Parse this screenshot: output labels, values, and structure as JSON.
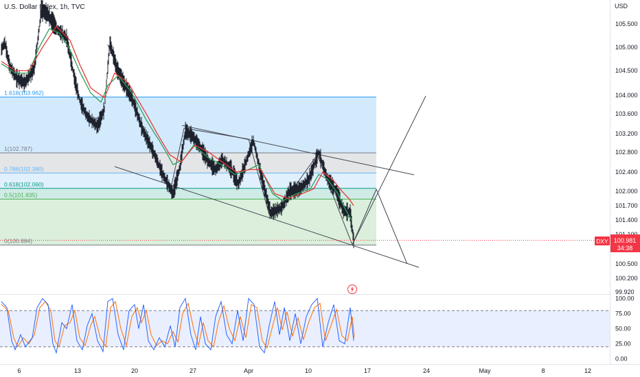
{
  "chart_data": {
    "type": "line",
    "title": "U.S. Dollar Index, 1h, TVC",
    "currency_label": "USD",
    "price_axis": {
      "ticks": [
        "105.500",
        "105.000",
        "104.500",
        "104.000",
        "103.600",
        "103.200",
        "102.800",
        "102.400",
        "102.000",
        "101.700",
        "101.400",
        "101.100",
        "100.500",
        "100.200",
        "99.920"
      ],
      "tick_values": [
        105.5,
        105.0,
        104.5,
        104.0,
        103.6,
        103.2,
        102.8,
        102.4,
        102.0,
        101.7,
        101.4,
        101.1,
        100.5,
        100.2,
        99.92
      ],
      "range": [
        99.9,
        105.9
      ],
      "scale": "nonlinear"
    },
    "oscillator_axis": {
      "ticks": [
        "100.00",
        "75.00",
        "50.00",
        "25.00",
        "0.00"
      ],
      "tick_values": [
        100,
        75,
        50,
        25,
        0
      ],
      "band_upper": 80,
      "band_lower": 20
    },
    "time_axis": {
      "labels": [
        "6",
        "13",
        "20",
        "27",
        "Apr",
        "10",
        "17",
        "24",
        "May",
        "8",
        "12"
      ]
    },
    "last_price": {
      "symbol": "DXY",
      "price": "100.981",
      "countdown": "34:38",
      "value": 100.981,
      "color": "#f23645"
    },
    "fibonacci": [
      {
        "label": "1.618(103.962)",
        "level": 1.618,
        "price": 103.962,
        "color": "#2196f3"
      },
      {
        "label": "1(102.787)",
        "level": 1,
        "price": 102.787,
        "color": "#787b86"
      },
      {
        "label": "0.786(102.380)",
        "level": 0.786,
        "price": 102.38,
        "color": "#64b5f6"
      },
      {
        "label": "0.618(102.060)",
        "level": 0.618,
        "price": 102.06,
        "color": "#089981"
      },
      {
        "label": "0.5(101.835)",
        "level": 0.5,
        "price": 101.835,
        "color": "#4caf50"
      },
      {
        "label": "0(100.884)",
        "level": 0,
        "price": 100.884,
        "color": "#787b86"
      }
    ],
    "price_series": {
      "name": "",
      "color": "#000000",
      "anchors": [
        [
          0,
          104.95
        ],
        [
          5,
          105.1
        ],
        [
          12,
          104.6
        ],
        [
          22,
          104.35
        ],
        [
          34,
          104.25
        ],
        [
          48,
          104.55
        ],
        [
          58,
          105.75
        ],
        [
          68,
          105.65
        ],
        [
          80,
          105.4
        ],
        [
          95,
          105.2
        ],
        [
          107,
          104.3
        ],
        [
          115,
          103.85
        ],
        [
          125,
          103.55
        ],
        [
          140,
          103.35
        ],
        [
          150,
          103.7
        ],
        [
          158,
          105.1
        ],
        [
          168,
          104.55
        ],
        [
          178,
          104.25
        ],
        [
          190,
          103.95
        ],
        [
          205,
          103.3
        ],
        [
          220,
          102.85
        ],
        [
          235,
          102.35
        ],
        [
          250,
          101.95
        ],
        [
          260,
          102.5
        ],
        [
          268,
          103.25
        ],
        [
          278,
          103.15
        ],
        [
          290,
          102.9
        ],
        [
          302,
          102.6
        ],
        [
          312,
          102.45
        ],
        [
          322,
          102.65
        ],
        [
          335,
          102.45
        ],
        [
          345,
          102.15
        ],
        [
          355,
          102.55
        ],
        [
          367,
          103.05
        ],
        [
          378,
          102.35
        ],
        [
          392,
          101.55
        ],
        [
          408,
          101.65
        ],
        [
          420,
          102.0
        ],
        [
          435,
          102.05
        ],
        [
          448,
          102.25
        ],
        [
          462,
          102.8
        ],
        [
          475,
          102.25
        ],
        [
          488,
          102.0
        ],
        [
          498,
          101.6
        ],
        [
          508,
          101.55
        ],
        [
          513,
          100.98
        ]
      ]
    },
    "ma_series": {
      "name": "",
      "color": "#2e9e5b",
      "anchors": [
        [
          0,
          104.65
        ],
        [
          20,
          104.45
        ],
        [
          40,
          104.45
        ],
        [
          55,
          105.0
        ],
        [
          70,
          105.4
        ],
        [
          85,
          105.3
        ],
        [
          100,
          104.95
        ],
        [
          115,
          104.45
        ],
        [
          130,
          104.05
        ],
        [
          145,
          103.85
        ],
        [
          155,
          104.2
        ],
        [
          170,
          104.4
        ],
        [
          190,
          104.05
        ],
        [
          210,
          103.5
        ],
        [
          230,
          103.05
        ],
        [
          250,
          102.55
        ],
        [
          265,
          102.65
        ],
        [
          280,
          102.95
        ],
        [
          300,
          102.7
        ],
        [
          320,
          102.55
        ],
        [
          340,
          102.35
        ],
        [
          360,
          102.45
        ],
        [
          375,
          102.55
        ],
        [
          395,
          101.95
        ],
        [
          410,
          101.8
        ],
        [
          430,
          101.95
        ],
        [
          450,
          102.05
        ],
        [
          462,
          102.35
        ],
        [
          475,
          102.25
        ],
        [
          490,
          101.95
        ],
        [
          500,
          101.65
        ],
        [
          510,
          101.4
        ]
      ]
    },
    "ma_red_series": {
      "name": "",
      "color": "#e53935",
      "anchors": [
        [
          0,
          104.7
        ],
        [
          20,
          104.5
        ],
        [
          40,
          104.5
        ],
        [
          60,
          105.0
        ],
        [
          80,
          105.45
        ],
        [
          100,
          105.15
        ],
        [
          115,
          104.6
        ],
        [
          130,
          104.15
        ],
        [
          150,
          103.95
        ],
        [
          165,
          104.45
        ],
        [
          185,
          104.25
        ],
        [
          205,
          103.75
        ],
        [
          225,
          103.25
        ],
        [
          245,
          102.75
        ],
        [
          262,
          102.6
        ],
        [
          282,
          102.95
        ],
        [
          302,
          102.8
        ],
        [
          322,
          102.6
        ],
        [
          342,
          102.4
        ],
        [
          362,
          102.45
        ],
        [
          378,
          102.45
        ],
        [
          398,
          101.95
        ],
        [
          418,
          101.85
        ],
        [
          438,
          101.95
        ],
        [
          455,
          102.05
        ],
        [
          468,
          102.4
        ],
        [
          482,
          102.25
        ],
        [
          496,
          102.0
        ],
        [
          506,
          101.85
        ],
        [
          513,
          101.7
        ]
      ]
    },
    "stoch_k": {
      "name": "",
      "color": "#2962ff",
      "anchors": [
        [
          0,
          95
        ],
        [
          8,
          85
        ],
        [
          15,
          30
        ],
        [
          20,
          15
        ],
        [
          28,
          40
        ],
        [
          35,
          20
        ],
        [
          45,
          35
        ],
        [
          52,
          85
        ],
        [
          60,
          100
        ],
        [
          68,
          90
        ],
        [
          75,
          25
        ],
        [
          80,
          10
        ],
        [
          88,
          60
        ],
        [
          95,
          50
        ],
        [
          103,
          90
        ],
        [
          110,
          30
        ],
        [
          118,
          15
        ],
        [
          125,
          55
        ],
        [
          132,
          75
        ],
        [
          140,
          30
        ],
        [
          148,
          12
        ],
        [
          155,
          95
        ],
        [
          162,
          100
        ],
        [
          170,
          40
        ],
        [
          178,
          15
        ],
        [
          186,
          80
        ],
        [
          194,
          90
        ],
        [
          200,
          50
        ],
        [
          207,
          90
        ],
        [
          214,
          30
        ],
        [
          222,
          15
        ],
        [
          230,
          35
        ],
        [
          238,
          20
        ],
        [
          246,
          55
        ],
        [
          253,
          20
        ],
        [
          260,
          85
        ],
        [
          268,
          100
        ],
        [
          276,
          40
        ],
        [
          283,
          15
        ],
        [
          290,
          70
        ],
        [
          297,
          25
        ],
        [
          305,
          15
        ],
        [
          312,
          70
        ],
        [
          320,
          95
        ],
        [
          328,
          40
        ],
        [
          336,
          25
        ],
        [
          344,
          80
        ],
        [
          352,
          30
        ],
        [
          360,
          100
        ],
        [
          368,
          90
        ],
        [
          376,
          20
        ],
        [
          383,
          10
        ],
        [
          390,
          55
        ],
        [
          398,
          95
        ],
        [
          405,
          40
        ],
        [
          412,
          85
        ],
        [
          420,
          30
        ],
        [
          428,
          75
        ],
        [
          436,
          25
        ],
        [
          444,
          70
        ],
        [
          452,
          90
        ],
        [
          460,
          100
        ],
        [
          468,
          20
        ],
        [
          476,
          60
        ],
        [
          484,
          90
        ],
        [
          492,
          30
        ],
        [
          500,
          25
        ],
        [
          508,
          85
        ],
        [
          513,
          30
        ]
      ]
    },
    "stoch_d": {
      "name": "",
      "color": "#ff6d00",
      "anchors": [
        [
          0,
          90
        ],
        [
          10,
          80
        ],
        [
          18,
          35
        ],
        [
          24,
          20
        ],
        [
          32,
          35
        ],
        [
          40,
          25
        ],
        [
          48,
          40
        ],
        [
          56,
          85
        ],
        [
          64,
          95
        ],
        [
          72,
          80
        ],
        [
          78,
          30
        ],
        [
          84,
          20
        ],
        [
          92,
          55
        ],
        [
          100,
          60
        ],
        [
          107,
          80
        ],
        [
          114,
          35
        ],
        [
          122,
          22
        ],
        [
          130,
          55
        ],
        [
          136,
          70
        ],
        [
          144,
          35
        ],
        [
          152,
          20
        ],
        [
          159,
          85
        ],
        [
          166,
          95
        ],
        [
          174,
          50
        ],
        [
          182,
          22
        ],
        [
          190,
          70
        ],
        [
          198,
          85
        ],
        [
          204,
          60
        ],
        [
          211,
          80
        ],
        [
          218,
          40
        ],
        [
          226,
          22
        ],
        [
          234,
          30
        ],
        [
          242,
          25
        ],
        [
          250,
          45
        ],
        [
          257,
          28
        ],
        [
          264,
          75
        ],
        [
          272,
          92
        ],
        [
          280,
          50
        ],
        [
          287,
          22
        ],
        [
          294,
          60
        ],
        [
          301,
          30
        ],
        [
          309,
          20
        ],
        [
          316,
          60
        ],
        [
          324,
          88
        ],
        [
          332,
          50
        ],
        [
          340,
          30
        ],
        [
          348,
          70
        ],
        [
          356,
          35
        ],
        [
          364,
          90
        ],
        [
          372,
          85
        ],
        [
          380,
          30
        ],
        [
          387,
          18
        ],
        [
          394,
          50
        ],
        [
          402,
          85
        ],
        [
          409,
          48
        ],
        [
          416,
          78
        ],
        [
          424,
          38
        ],
        [
          432,
          68
        ],
        [
          440,
          32
        ],
        [
          448,
          62
        ],
        [
          456,
          85
        ],
        [
          464,
          92
        ],
        [
          472,
          30
        ],
        [
          480,
          55
        ],
        [
          488,
          82
        ],
        [
          496,
          38
        ],
        [
          504,
          30
        ],
        [
          511,
          70
        ],
        [
          514,
          35
        ]
      ]
    }
  }
}
